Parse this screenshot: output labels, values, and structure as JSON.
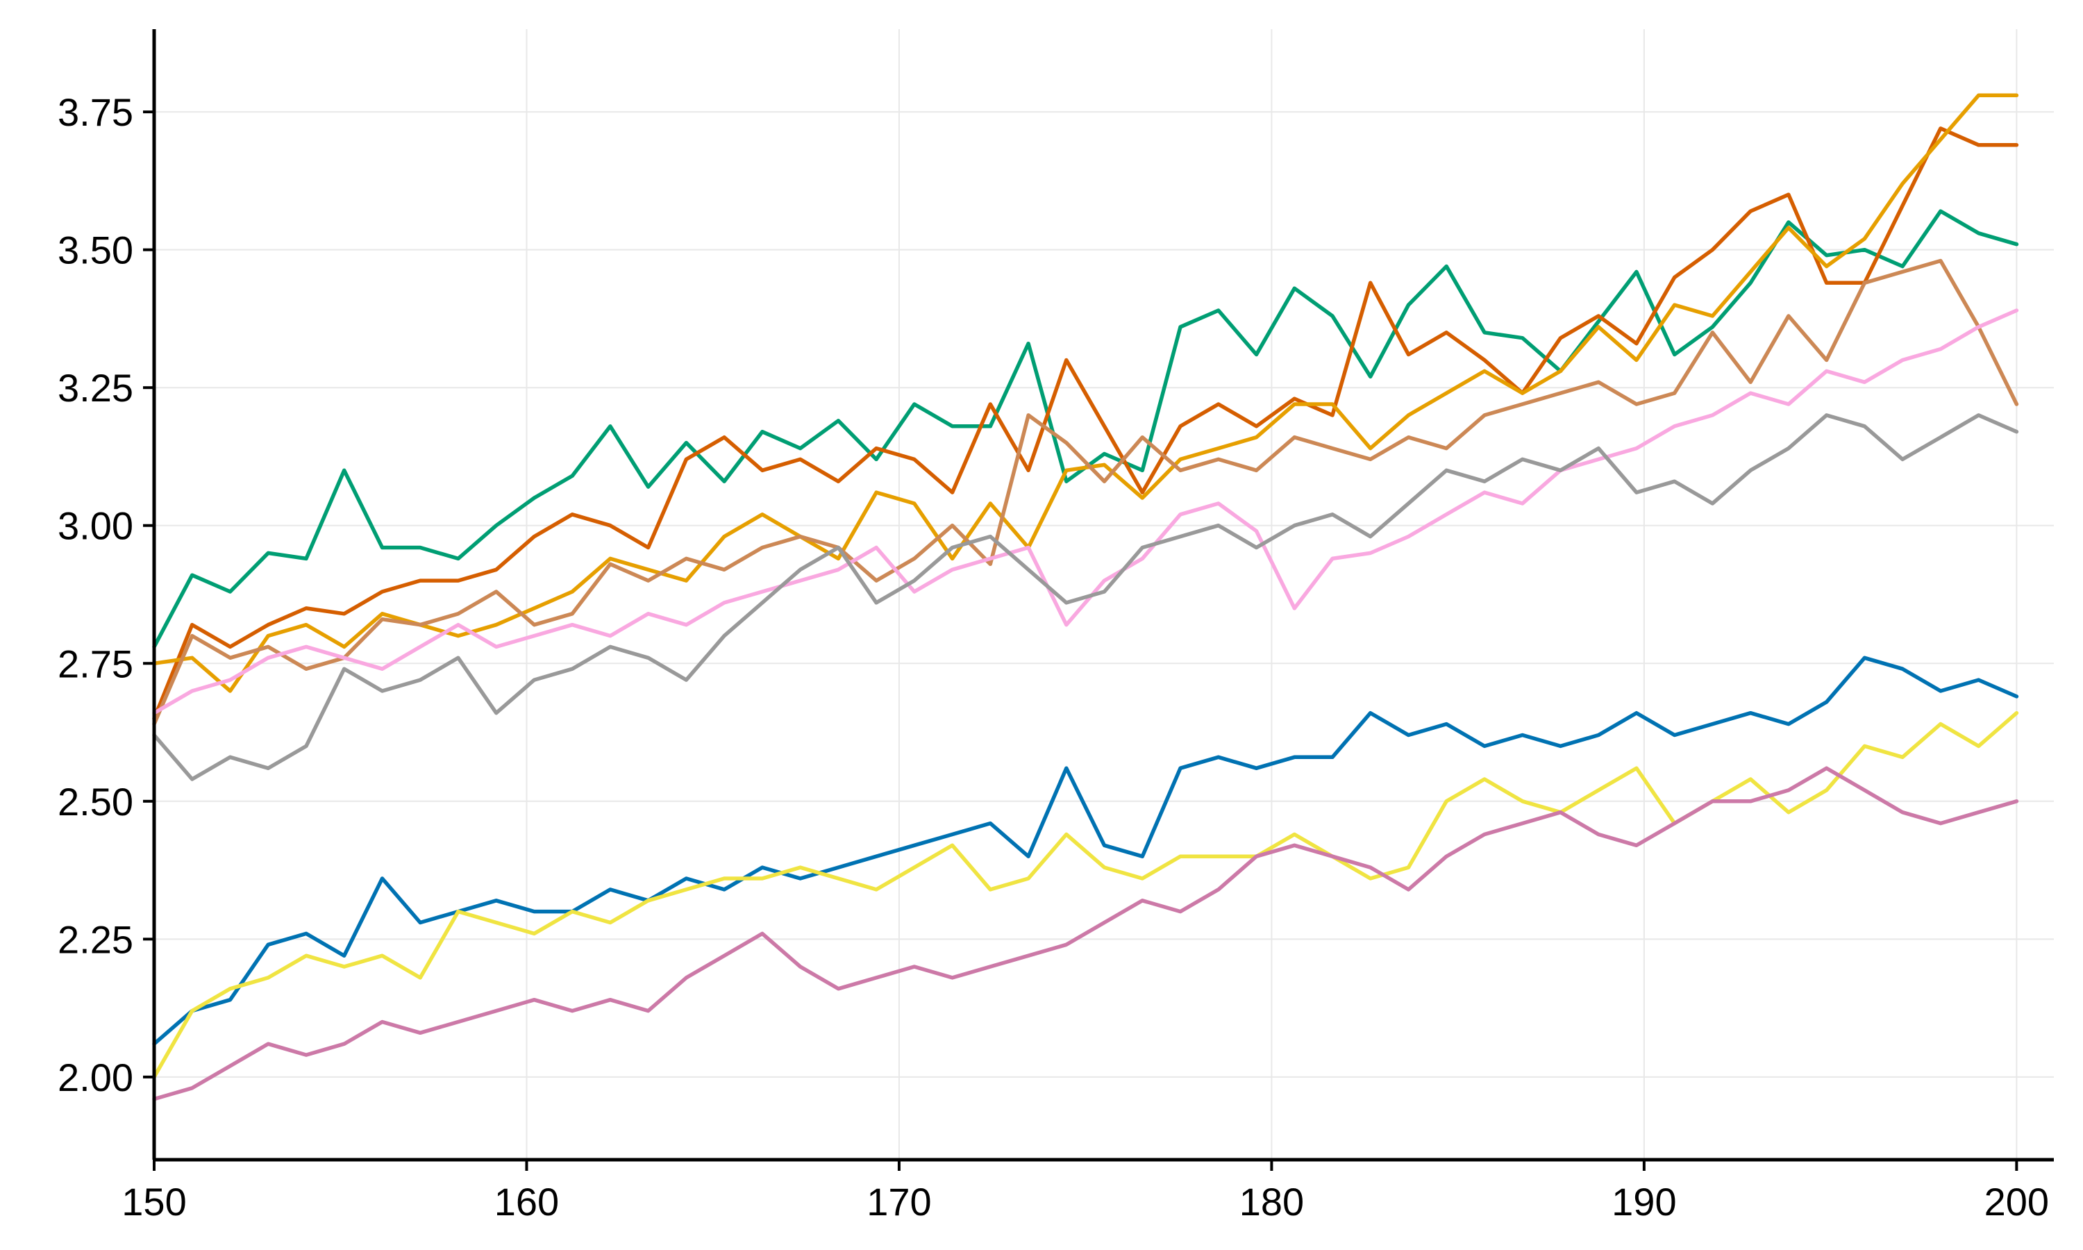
{
  "chart_data": {
    "type": "line",
    "title": "",
    "xlabel": "",
    "ylabel": "",
    "xlim": [
      150,
      201
    ],
    "ylim": [
      1.85,
      3.9
    ],
    "x_ticks": [
      150,
      160,
      170,
      180,
      190,
      200
    ],
    "y_ticks": [
      2.0,
      2.25,
      2.5,
      2.75,
      3.0,
      3.25,
      3.5,
      3.75
    ],
    "x_tick_labels": [
      "150",
      "160",
      "170",
      "180",
      "190",
      "200"
    ],
    "y_tick_labels": [
      "2.00",
      "2.25",
      "2.50",
      "2.75",
      "3.00",
      "3.25",
      "3.50",
      "3.75"
    ],
    "grid": true,
    "legend": "none",
    "x_step": 2.5,
    "series": [
      {
        "color": "#009E73",
        "values": [
          2.78,
          2.91,
          2.88,
          2.95,
          2.94,
          3.1,
          2.96,
          2.96,
          2.94,
          3.0,
          3.05,
          3.09,
          3.18,
          3.07,
          3.15,
          3.08,
          3.17,
          3.14,
          3.19,
          3.12,
          3.22,
          3.18,
          3.18,
          3.33,
          3.08,
          3.13,
          3.1,
          3.36,
          3.39,
          3.31,
          3.43,
          3.38,
          3.27,
          3.4,
          3.47,
          3.35,
          3.34,
          3.28,
          3.37,
          3.46,
          3.31,
          3.36,
          3.44,
          3.55,
          3.49,
          3.5,
          3.47,
          3.57,
          3.53,
          3.51
        ]
      },
      {
        "color": "#D55E00",
        "values": [
          2.65,
          2.82,
          2.78,
          2.82,
          2.85,
          2.84,
          2.88,
          2.9,
          2.9,
          2.92,
          2.98,
          3.02,
          3.0,
          2.96,
          3.12,
          3.16,
          3.1,
          3.12,
          3.08,
          3.14,
          3.12,
          3.06,
          3.22,
          3.1,
          3.3,
          3.18,
          3.06,
          3.18,
          3.22,
          3.18,
          3.23,
          3.2,
          3.44,
          3.31,
          3.35,
          3.3,
          3.24,
          3.34,
          3.38,
          3.33,
          3.45,
          3.5,
          3.57,
          3.6,
          3.44,
          3.44,
          3.58,
          3.72,
          3.69,
          3.69
        ]
      },
      {
        "color": "#E69F00",
        "values": [
          2.75,
          2.76,
          2.7,
          2.8,
          2.82,
          2.78,
          2.84,
          2.82,
          2.8,
          2.82,
          2.85,
          2.88,
          2.94,
          2.92,
          2.9,
          2.98,
          3.02,
          2.98,
          2.94,
          3.06,
          3.04,
          2.94,
          3.04,
          2.96,
          3.1,
          3.11,
          3.05,
          3.12,
          3.14,
          3.16,
          3.22,
          3.22,
          3.14,
          3.2,
          3.24,
          3.28,
          3.24,
          3.28,
          3.36,
          3.3,
          3.4,
          3.38,
          3.46,
          3.54,
          3.47,
          3.52,
          3.62,
          3.7,
          3.78,
          3.78
        ]
      },
      {
        "color": "#CC8855",
        "values": [
          2.64,
          2.8,
          2.76,
          2.78,
          2.74,
          2.76,
          2.83,
          2.82,
          2.84,
          2.88,
          2.82,
          2.84,
          2.93,
          2.9,
          2.94,
          2.92,
          2.96,
          2.98,
          2.96,
          2.9,
          2.94,
          3.0,
          2.93,
          3.2,
          3.15,
          3.08,
          3.16,
          3.1,
          3.12,
          3.1,
          3.16,
          3.14,
          3.12,
          3.16,
          3.14,
          3.2,
          3.22,
          3.24,
          3.26,
          3.22,
          3.24,
          3.35,
          3.26,
          3.38,
          3.3,
          3.44,
          3.46,
          3.48,
          3.36,
          3.22
        ]
      },
      {
        "color": "#F9A8E0",
        "values": [
          2.66,
          2.7,
          2.72,
          2.76,
          2.78,
          2.76,
          2.74,
          2.78,
          2.82,
          2.78,
          2.8,
          2.82,
          2.8,
          2.84,
          2.82,
          2.86,
          2.88,
          2.9,
          2.92,
          2.96,
          2.88,
          2.92,
          2.94,
          2.96,
          2.82,
          2.9,
          2.94,
          3.02,
          3.04,
          2.99,
          2.85,
          2.94,
          2.95,
          2.98,
          3.02,
          3.06,
          3.04,
          3.1,
          3.12,
          3.14,
          3.18,
          3.2,
          3.24,
          3.22,
          3.28,
          3.26,
          3.3,
          3.32,
          3.36,
          3.39
        ]
      },
      {
        "color": "#999999",
        "values": [
          2.62,
          2.54,
          2.58,
          2.56,
          2.6,
          2.74,
          2.7,
          2.72,
          2.76,
          2.66,
          2.72,
          2.74,
          2.78,
          2.76,
          2.72,
          2.8,
          2.86,
          2.92,
          2.96,
          2.86,
          2.9,
          2.96,
          2.98,
          2.92,
          2.86,
          2.88,
          2.96,
          2.98,
          3.0,
          2.96,
          3.0,
          3.02,
          2.98,
          3.04,
          3.1,
          3.08,
          3.12,
          3.1,
          3.14,
          3.06,
          3.08,
          3.04,
          3.1,
          3.14,
          3.2,
          3.18,
          3.12,
          3.16,
          3.2,
          3.17
        ]
      },
      {
        "color": "#0072B2",
        "values": [
          2.06,
          2.12,
          2.14,
          2.24,
          2.26,
          2.22,
          2.36,
          2.28,
          2.3,
          2.32,
          2.3,
          2.3,
          2.34,
          2.32,
          2.36,
          2.34,
          2.38,
          2.36,
          2.38,
          2.4,
          2.42,
          2.44,
          2.46,
          2.4,
          2.56,
          2.42,
          2.4,
          2.56,
          2.58,
          2.56,
          2.58,
          2.58,
          2.66,
          2.62,
          2.64,
          2.6,
          2.62,
          2.6,
          2.62,
          2.66,
          2.62,
          2.64,
          2.66,
          2.64,
          2.68,
          2.76,
          2.74,
          2.7,
          2.72,
          2.69
        ]
      },
      {
        "color": "#F0E442",
        "values": [
          2.0,
          2.12,
          2.16,
          2.18,
          2.22,
          2.2,
          2.22,
          2.18,
          2.3,
          2.28,
          2.26,
          2.3,
          2.28,
          2.32,
          2.34,
          2.36,
          2.36,
          2.38,
          2.36,
          2.34,
          2.38,
          2.42,
          2.34,
          2.36,
          2.44,
          2.38,
          2.36,
          2.4,
          2.4,
          2.4,
          2.44,
          2.4,
          2.36,
          2.38,
          2.5,
          2.54,
          2.5,
          2.48,
          2.52,
          2.56,
          2.46,
          2.5,
          2.54,
          2.48,
          2.52,
          2.6,
          2.58,
          2.64,
          2.6,
          2.66
        ]
      },
      {
        "color": "#CC79A7",
        "values": [
          1.96,
          1.98,
          2.02,
          2.06,
          2.04,
          2.06,
          2.1,
          2.08,
          2.1,
          2.12,
          2.14,
          2.12,
          2.14,
          2.12,
          2.18,
          2.22,
          2.26,
          2.2,
          2.16,
          2.18,
          2.2,
          2.18,
          2.2,
          2.22,
          2.24,
          2.28,
          2.32,
          2.3,
          2.34,
          2.4,
          2.42,
          2.4,
          2.38,
          2.34,
          2.4,
          2.44,
          2.46,
          2.48,
          2.44,
          2.42,
          2.46,
          2.5,
          2.5,
          2.52,
          2.56,
          2.52,
          2.48,
          2.46,
          2.48,
          2.5
        ]
      }
    ]
  }
}
